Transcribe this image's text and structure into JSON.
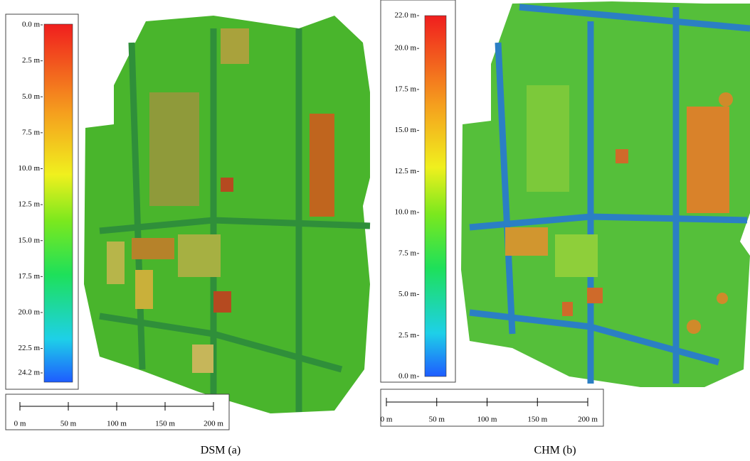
{
  "panels": [
    {
      "caption": "DSM (a)",
      "colorbar": {
        "range": [
          0,
          24.2
        ],
        "ticks": [
          {
            "value": 0,
            "label": "0.0 m"
          },
          {
            "value": 2.5,
            "label": "2.5 m"
          },
          {
            "value": 5,
            "label": "5.0 m"
          },
          {
            "value": 7.5,
            "label": "7.5 m"
          },
          {
            "value": 10,
            "label": "10.0 m"
          },
          {
            "value": 12.5,
            "label": "12.5 m"
          },
          {
            "value": 15,
            "label": "15.0 m"
          },
          {
            "value": 17.5,
            "label": "17.5 m"
          },
          {
            "value": 20,
            "label": "20.0 m"
          },
          {
            "value": 22.5,
            "label": "22.5 m"
          },
          {
            "value": 24.2,
            "label": "24.2 m"
          }
        ]
      },
      "scalebar": {
        "range": [
          0,
          200
        ],
        "ticks": [
          {
            "value": 0,
            "label": "0 m"
          },
          {
            "value": 50,
            "label": "50 m"
          },
          {
            "value": 100,
            "label": "100 m"
          },
          {
            "value": 150,
            "label": "150 m"
          },
          {
            "value": 200,
            "label": "200 m"
          }
        ]
      }
    },
    {
      "caption": "CHM (b)",
      "colorbar": {
        "range": [
          0,
          22
        ],
        "ticks": [
          {
            "value": 0,
            "label": "0.0 m"
          },
          {
            "value": 2.5,
            "label": "2.5 m"
          },
          {
            "value": 5,
            "label": "5.0 m"
          },
          {
            "value": 7.5,
            "label": "7.5 m"
          },
          {
            "value": 10,
            "label": "10.0 m"
          },
          {
            "value": 12.5,
            "label": "12.5 m"
          },
          {
            "value": 15,
            "label": "15.0 m"
          },
          {
            "value": 17.5,
            "label": "17.5 m"
          },
          {
            "value": 20,
            "label": "20.0 m"
          },
          {
            "value": 22,
            "label": "22.0 m"
          }
        ]
      },
      "scalebar": {
        "range": [
          0,
          200
        ],
        "ticks": [
          {
            "value": 0,
            "label": "0 m"
          },
          {
            "value": 50,
            "label": "50 m"
          },
          {
            "value": 100,
            "label": "100 m"
          },
          {
            "value": 150,
            "label": "150 m"
          },
          {
            "value": 200,
            "label": "200 m"
          }
        ]
      }
    }
  ]
}
